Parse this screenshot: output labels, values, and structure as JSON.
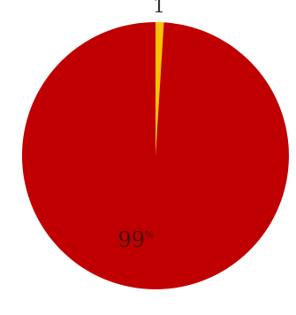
{
  "chart_data": {
    "type": "pie",
    "title": "",
    "start_angle_deg": 0,
    "direction": "clockwise",
    "slices": [
      {
        "name": "",
        "value": 99,
        "color": "#c00000",
        "label": "99",
        "label_suffix": "%"
      },
      {
        "name": "",
        "value": 1,
        "color": "#ffc000",
        "label": "1",
        "label_suffix": ""
      }
    ]
  }
}
